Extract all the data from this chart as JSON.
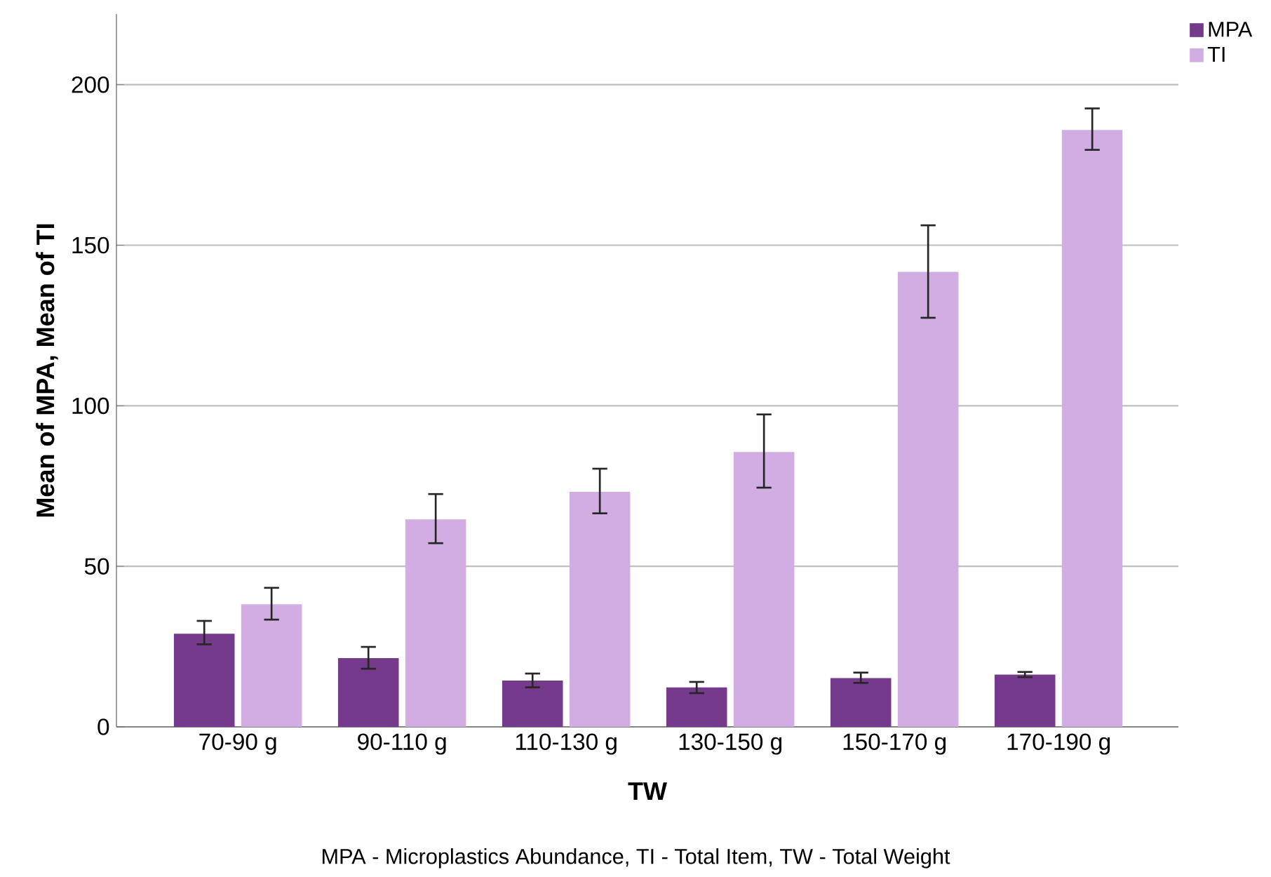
{
  "chart_data": {
    "type": "bar",
    "xlabel": "TW",
    "ylabel": "Mean of MPA, Mean of TI",
    "categories": [
      "70-90 g",
      "90-110 g",
      "110-130 g",
      "130-150 g",
      "150-170 g",
      "170-190 g"
    ],
    "series": [
      {
        "name": "MPA",
        "color": "#763a8c",
        "values": [
          29.0,
          21.4,
          14.4,
          12.3,
          15.2,
          16.3
        ],
        "errors": [
          [
            25.7,
            33.0
          ],
          [
            18.1,
            24.9
          ],
          [
            12.3,
            16.6
          ],
          [
            10.5,
            14.0
          ],
          [
            13.7,
            16.9
          ],
          [
            15.5,
            17.1
          ]
        ]
      },
      {
        "name": "TI",
        "color": "#d1ade3",
        "values": [
          38.2,
          64.6,
          73.2,
          85.6,
          141.7,
          185.9
        ],
        "errors": [
          [
            33.4,
            43.3
          ],
          [
            57.2,
            72.5
          ],
          [
            66.5,
            80.4
          ],
          [
            74.5,
            97.3
          ],
          [
            127.4,
            156.2
          ],
          [
            179.7,
            192.6
          ]
        ]
      }
    ],
    "ylim": [
      0,
      222
    ],
    "yticks": [
      0,
      50,
      100,
      150,
      200
    ],
    "grid": "y",
    "legend": "top right",
    "annotations": [
      "MPA - Microplastics Abundance, TI - Total Item, TW - Total Weight"
    ]
  }
}
